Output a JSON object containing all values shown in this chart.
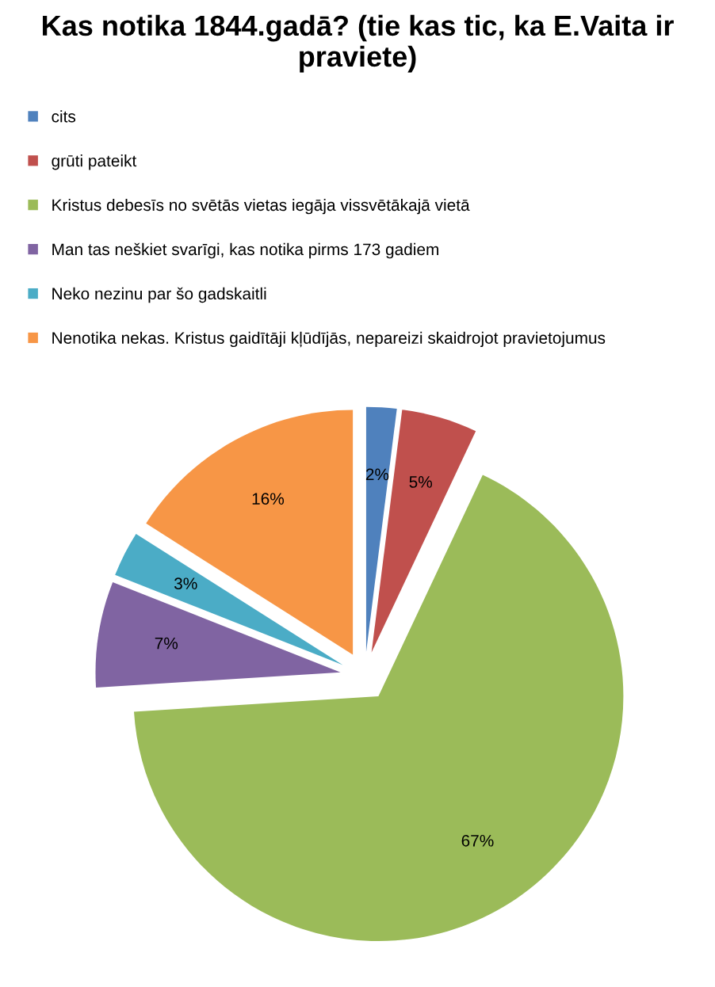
{
  "chart_data": {
    "type": "pie",
    "title": "Kas notika 1844.gadā? (tie kas tic, ka E.Vaita ir praviete)",
    "categories": [
      "cits",
      "grūti pateikt",
      "Kristus debesīs no svētās vietas iegāja vissvētākajā vietā",
      "Man tas neškiet svarīgi, kas notika pirms 173 gadiem",
      "Neko nezinu par šo gadskaitli",
      "Nenotika nekas. Kristus gaidītāji kļūdījās, nepareizi skaidrojot pravietojumus"
    ],
    "values": [
      2,
      5,
      67,
      7,
      3,
      16
    ],
    "colors": [
      "#4f81bd",
      "#c0504d",
      "#9bbb59",
      "#8064a2",
      "#4bacc6",
      "#f79646"
    ],
    "value_labels": [
      "2%",
      "5%",
      "67%",
      "7%",
      "3%",
      "16%"
    ],
    "legend": "top"
  }
}
